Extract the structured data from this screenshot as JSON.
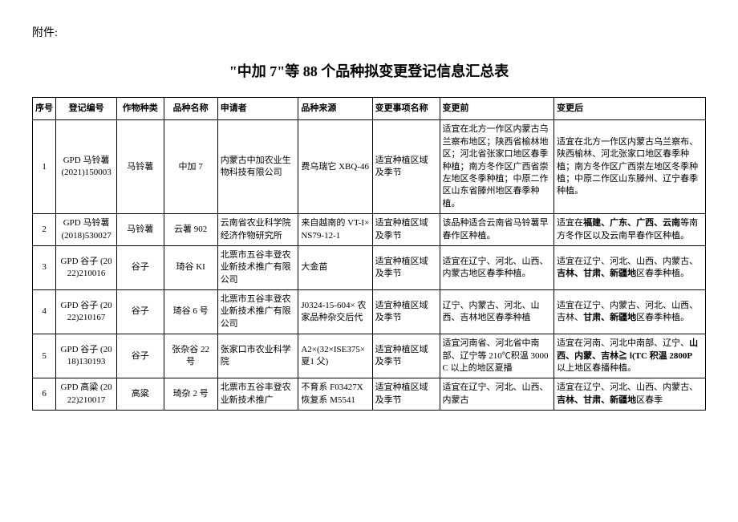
{
  "attachment_label": "附件:",
  "title": "\"中加 7\"等 88 个品种拟变更登记信息汇总表",
  "headers": {
    "seq": "序号",
    "regno": "登记编号",
    "crop": "作物种类",
    "variety": "品种名称",
    "applicant": "申请者",
    "source": "品种来源",
    "changename": "变更事项名称",
    "before": "变更前",
    "after": "变更后"
  },
  "rows": [
    {
      "seq": "1",
      "regno": "GPD 马铃薯 (2021)150003",
      "crop": "马铃薯",
      "variety": "中加 7",
      "applicant": "内蒙古中加农业生物科技有限公司",
      "source": "费乌瑞它 XBQ-46",
      "changename": "适宜种植区域及季节",
      "before": "适宜在北方一作区内蒙古乌兰察布地区；陕西省榆林地区；河北省张家口地区春季种植；南方冬作区广西省崇左地区冬季种植；中原二作区山东省滕州地区春季种植。",
      "after": "适宜在北方一作区内蒙古乌兰察布、陕西榆林、河北张家口地区春季种植；南方冬作区广西崇左地区冬季种植；中原二作区山东滕州、辽宁春季种植。"
    },
    {
      "seq": "2",
      "regno": "GPD 马铃薯 (2018)530027",
      "crop": "马铃薯",
      "variety": "云薯 902",
      "applicant": "云南省农业科学院经济作物研究所",
      "source": "来自越南的 VT-I×NS79-12-1",
      "changename": "适宜种植区域及季节",
      "before": "该品种适合云南省马铃薯早春作区种植。",
      "after_html": "适宜在<b>福建、广东、广西、云南</b>等南方冬作区以及云南早春作区种植。"
    },
    {
      "seq": "3",
      "regno": "GPD 谷子 (2022)210016",
      "crop": "谷子",
      "variety": "琦谷 KI",
      "applicant": "北票市五谷丰登农业新技术推广有限公司",
      "source": "大金苗",
      "changename": "适宜种植区域及季节",
      "before": "适宜在辽宁、河北、山西、内蒙古地区春季种植。",
      "after_html": "适宜在辽宁、河北、山西、内蒙古、<b>吉林、甘肃、新疆地</b>区春季种植。"
    },
    {
      "seq": "4",
      "regno": "GPD 谷子 (2022)210167",
      "crop": "谷子",
      "variety": "琦谷 6 号",
      "applicant": "北票市五谷丰登农业新技术推广有限公司",
      "source": "J0324-15-604× 农家品种杂交后代",
      "changename": "适宜种植区域及季节",
      "before": "辽宁、内蒙古、河北、山西、吉林地区春季种植",
      "after_html": "适宜在辽宁、内蒙古、河北、山西、吉林、<b>甘肃、新疆地</b>区春季种植。"
    },
    {
      "seq": "5",
      "regno": "GPD 谷子 (2018)130193",
      "crop": "谷子",
      "variety": "张杂谷 22 号",
      "applicant": "张家口市农业科学院",
      "source": "A2×(32×ISE375× 夏1 父)",
      "changename": "适宜种植区域及季节",
      "before": "适宜河南省、河北省中南部、辽宁等 210℃积温 3000C 以上的地区夏播",
      "after_html": "适宜在河南、河北中南部、辽宁、<b>山西、内蒙、吉林≧ l(TC 积温 2800P</b> 以上地区春播种植。"
    },
    {
      "seq": "6",
      "regno": "GPD 高粱 (2022)210017",
      "crop": "高粱",
      "variety": "琦杂 2 号",
      "applicant": "北票市五谷丰登农业新技术推广",
      "source": "不育系 F03427X 恢复系 M5541",
      "changename": "适宜种植区域及季节",
      "before": "适宜在辽宁、河北、山西、内蒙古",
      "after_html": "适宜在辽宁、河北、山西、内蒙古、<b>吉林、甘肃、新疆地</b>区春季"
    }
  ]
}
